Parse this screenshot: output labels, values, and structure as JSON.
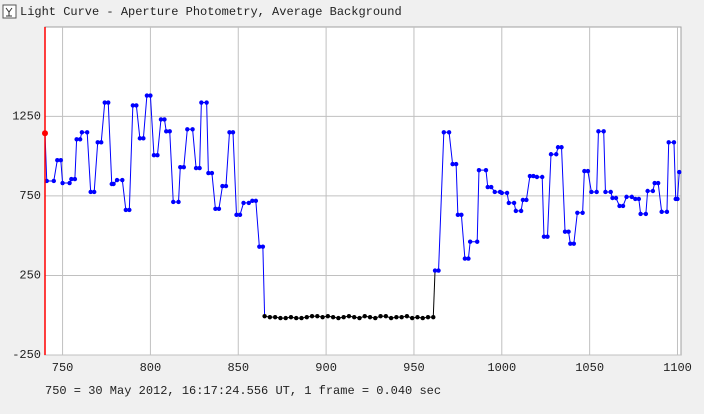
{
  "window_title": "Light Curve - Aperture Photometry, Average Background",
  "chart_data": {
    "type": "line",
    "status": "750 = 30 May 2012, 16:17:24.556 UT, 1 frame = 0.040 sec",
    "xlim": [
      740,
      1102
    ],
    "xticks": [
      750,
      800,
      850,
      900,
      950,
      1000,
      1050,
      1100
    ],
    "ylim": [
      -250,
      1812
    ],
    "yticks": [
      -250,
      250,
      750,
      1250
    ],
    "grid": true,
    "cursor_color": "#ff0000",
    "x": [
      740,
      741,
      745,
      747,
      749,
      750,
      754,
      755,
      757,
      758,
      760,
      761,
      764,
      766,
      768,
      770,
      772,
      774,
      776,
      778,
      779,
      781,
      784,
      786,
      788,
      790,
      792,
      794,
      796,
      798,
      800,
      802,
      804,
      806,
      808,
      809,
      811,
      813,
      816,
      817,
      819,
      821,
      824,
      826,
      828,
      829,
      832,
      833,
      835,
      837,
      839,
      841,
      843,
      845,
      847,
      849,
      851,
      853,
      856,
      858,
      860,
      862,
      864,
      865,
      868,
      871,
      874,
      877,
      880,
      883,
      886,
      889,
      892,
      895,
      898,
      901,
      904,
      907,
      910,
      913,
      916,
      919,
      922,
      925,
      928,
      931,
      934,
      937,
      940,
      943,
      946,
      949,
      952,
      955,
      958,
      961,
      962,
      964,
      967,
      970,
      972,
      974,
      975,
      977,
      979,
      981,
      982,
      986,
      987,
      991,
      992,
      994,
      996,
      999,
      1000,
      1003,
      1004,
      1007,
      1008,
      1011,
      1012,
      1014,
      1016,
      1018,
      1020,
      1023,
      1024,
      1026,
      1028,
      1031,
      1032,
      1034,
      1036,
      1038,
      1039,
      1041,
      1043,
      1046,
      1047,
      1049,
      1051,
      1054,
      1055,
      1058,
      1059,
      1062,
      1063,
      1065,
      1067,
      1069,
      1071,
      1074,
      1076,
      1078,
      1079,
      1082,
      1083,
      1086,
      1087,
      1089,
      1091,
      1094,
      1095,
      1098,
      1099,
      1100,
      1101
    ],
    "series": [
      {
        "color": "#0000ff",
        "values": [
          1144,
          844,
          844,
          975,
          975,
          831,
          831,
          856,
          856,
          1106,
          1106,
          1150,
          1150,
          775,
          775,
          1087,
          1087,
          1337,
          1337,
          825,
          825,
          850,
          850,
          662,
          662,
          1319,
          1319,
          1112,
          1112,
          1381,
          1381,
          1006,
          1006,
          1231,
          1231,
          1156,
          1156,
          712,
          712,
          931,
          931,
          1169,
          1169,
          925,
          925,
          1337,
          1337,
          894,
          894,
          669,
          669,
          812,
          812,
          1150,
          1150,
          631,
          631,
          706,
          706,
          719,
          719,
          431,
          431,
          null,
          null,
          null,
          null,
          null,
          null,
          null,
          null,
          null,
          null,
          null,
          null,
          null,
          null,
          null,
          null,
          null,
          null,
          null,
          null,
          null,
          null,
          null,
          null,
          null,
          null,
          null,
          null,
          null,
          null,
          null,
          null,
          null,
          281,
          281,
          1150,
          1150,
          950,
          950,
          631,
          631,
          356,
          356,
          462,
          462,
          912,
          912,
          806,
          806,
          775,
          775,
          769,
          769,
          706,
          706,
          656,
          656,
          725,
          725,
          875,
          875,
          869,
          869,
          494,
          494,
          1012,
          1012,
          1056,
          1056,
          525,
          525,
          450,
          450,
          644,
          644,
          906,
          906,
          775,
          775,
          1156,
          1156,
          775,
          775,
          737,
          737,
          687,
          687,
          744,
          744,
          731,
          731,
          637,
          637,
          781,
          781,
          831,
          831,
          650,
          650,
          1087,
          1087,
          731,
          731,
          900
        ]
      },
      {
        "color": "#000000",
        "values": [
          null,
          null,
          null,
          null,
          null,
          null,
          null,
          null,
          null,
          null,
          null,
          null,
          null,
          null,
          null,
          null,
          null,
          null,
          null,
          null,
          null,
          null,
          null,
          null,
          null,
          null,
          null,
          null,
          null,
          null,
          null,
          null,
          null,
          null,
          null,
          null,
          null,
          null,
          null,
          null,
          null,
          null,
          null,
          null,
          null,
          null,
          null,
          null,
          null,
          null,
          null,
          null,
          null,
          null,
          null,
          null,
          null,
          null,
          null,
          null,
          null,
          null,
          null,
          -6,
          -12,
          -12,
          -18,
          -18,
          -12,
          -18,
          -18,
          -12,
          -6,
          -6,
          -12,
          -6,
          -12,
          -18,
          -12,
          -6,
          -12,
          -18,
          -6,
          -12,
          -18,
          -6,
          -6,
          -18,
          -12,
          -12,
          -6,
          -18,
          -12,
          -18,
          -12,
          -12,
          null,
          null,
          null,
          null,
          null,
          null,
          null,
          null,
          null,
          null,
          null,
          null,
          null,
          null,
          null,
          null,
          null,
          null,
          null,
          null,
          null,
          null,
          null,
          null,
          null,
          null,
          null,
          null,
          null,
          null,
          null,
          null,
          null,
          null,
          null,
          null,
          null,
          null,
          null,
          null,
          null,
          null,
          null,
          null,
          null,
          null,
          null,
          null,
          null,
          null,
          null,
          null,
          null,
          null,
          null,
          null,
          null,
          null,
          null,
          null,
          null,
          null,
          null,
          null,
          null,
          null,
          null,
          null,
          null,
          null,
          null
        ]
      }
    ]
  }
}
